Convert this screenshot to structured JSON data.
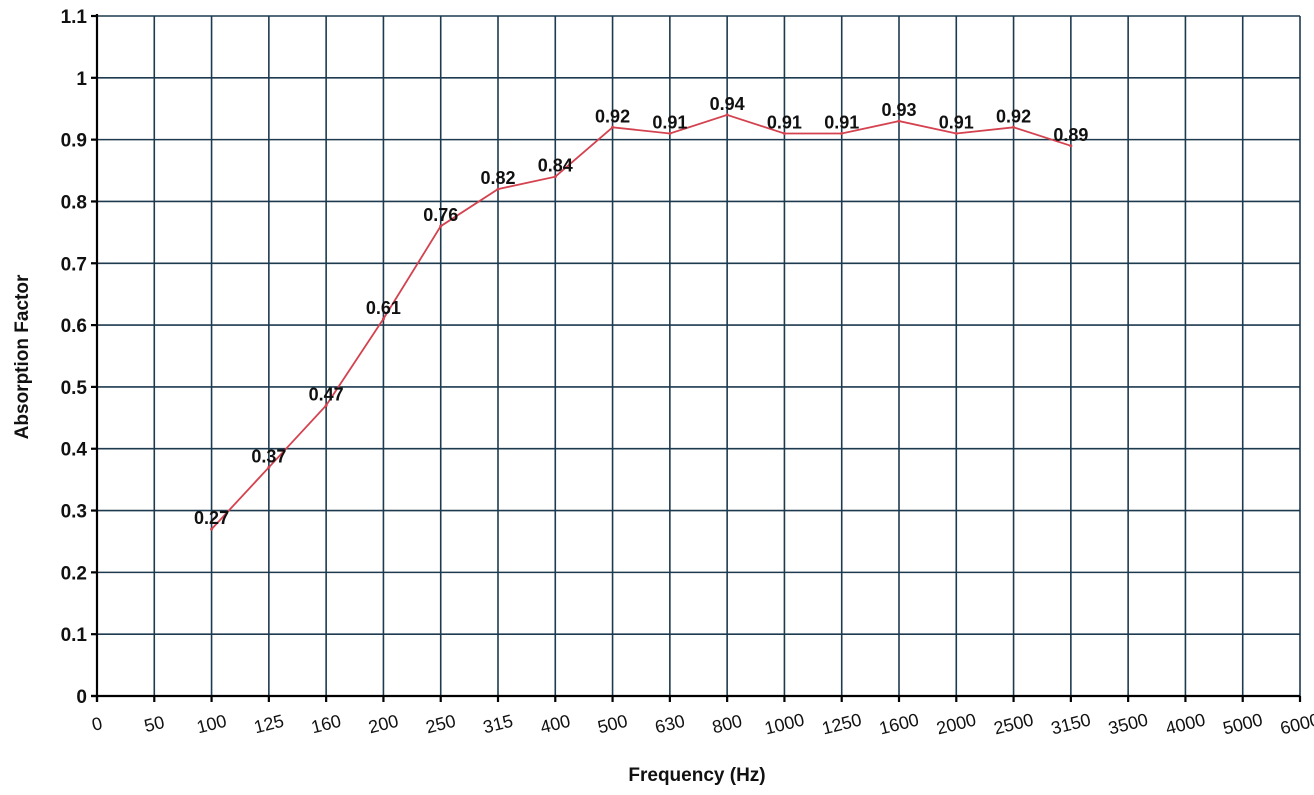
{
  "chart_data": {
    "type": "line",
    "title": "",
    "xlabel": "Frequency (Hz)",
    "ylabel": "Absorption Factor",
    "categories": [
      "0",
      "50",
      "100",
      "125",
      "160",
      "200",
      "250",
      "315",
      "400",
      "500",
      "630",
      "800",
      "1000",
      "1250",
      "1600",
      "2000",
      "2500",
      "3150",
      "3500",
      "4000",
      "5000",
      "6000"
    ],
    "ylim": [
      0,
      1.1
    ],
    "yticks": [
      "0",
      "0.1",
      "0.2",
      "0.3",
      "0.4",
      "0.5",
      "0.6",
      "0.7",
      "0.8",
      "0.9",
      "1",
      "1.1"
    ],
    "grid": true,
    "series": [
      {
        "x": [
          "100",
          "125",
          "160",
          "200",
          "250",
          "315",
          "400",
          "500",
          "630",
          "800",
          "1000",
          "1250",
          "1600",
          "2000",
          "2500",
          "3150"
        ],
        "values": [
          0.27,
          0.37,
          0.47,
          0.61,
          0.76,
          0.82,
          0.84,
          0.92,
          0.91,
          0.94,
          0.91,
          0.91,
          0.93,
          0.91,
          0.92,
          0.89
        ],
        "labels": [
          "0.27",
          "0.37",
          "0.47",
          "0.61",
          "0.76",
          "0.82",
          "0.84",
          "0.92",
          "0.91",
          "0.94",
          "0.91",
          "0.91",
          "0.93",
          "0.91",
          "0.92",
          "0.89"
        ],
        "color": "#d4424f"
      }
    ]
  }
}
